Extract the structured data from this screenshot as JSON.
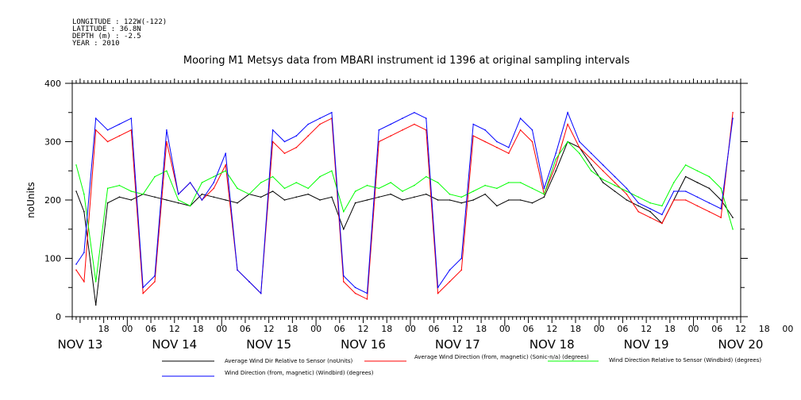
{
  "metadata": {
    "longitude": "LONGITUDE : 122W(-122)",
    "latitude": "LATITUDE : 36.8N",
    "depth": "DEPTH (m) : -2.5",
    "year": "YEAR : 2010"
  },
  "chart_data": {
    "type": "line",
    "title": "Mooring M1 Metsys data from MBARI instrument id 1396 at original sampling intervals",
    "ylabel": "noUnits",
    "xlabel": "",
    "ylim": [
      0,
      400
    ],
    "y_ticks": [
      0,
      100,
      200,
      300,
      400
    ],
    "x_unit": "hours since NOV 13 00:00, 2010",
    "xlim": [
      10,
      180
    ],
    "x_hour_ticks": [
      "18",
      "00",
      "06",
      "12",
      "18",
      "00",
      "06",
      "12",
      "18",
      "00",
      "06",
      "12",
      "18",
      "00",
      "06",
      "12",
      "18",
      "00",
      "06",
      "12",
      "18",
      "00",
      "06",
      "12",
      "18",
      "00",
      "06",
      "12",
      "18",
      "00",
      "06",
      "12"
    ],
    "x_day_labels": [
      "NOV 13",
      "NOV 14",
      "NOV 15",
      "NOV 16",
      "NOV 17",
      "NOV 18",
      "NOV 19",
      "NOV 20"
    ],
    "grid": false,
    "legend_position": "bottom",
    "series": [
      {
        "name": "Average Wind Dir Relative to Sensor (noUnits)",
        "color": "#000000",
        "x": [
          11,
          13,
          16,
          19,
          22,
          25,
          28,
          31,
          34,
          37,
          40,
          43,
          46,
          49,
          52,
          55,
          58,
          61,
          64,
          67,
          70,
          73,
          76,
          79,
          82,
          85,
          88,
          91,
          94,
          97,
          100,
          103,
          106,
          109,
          112,
          115,
          118,
          121,
          124,
          127,
          130,
          133,
          136,
          139,
          142,
          145,
          148,
          151,
          154,
          157,
          160,
          163,
          166,
          169,
          172,
          175,
          178
        ],
        "values": [
          215,
          180,
          20,
          195,
          205,
          200,
          210,
          205,
          200,
          195,
          190,
          210,
          205,
          200,
          195,
          210,
          205,
          215,
          200,
          205,
          210,
          200,
          205,
          150,
          195,
          200,
          205,
          210,
          200,
          205,
          210,
          200,
          200,
          195,
          200,
          210,
          190,
          200,
          200,
          195,
          205,
          250,
          300,
          290,
          260,
          230,
          215,
          200,
          190,
          180,
          160,
          200,
          240,
          230,
          220,
          200,
          170
        ]
      },
      {
        "name": "Average Wind Direction (from, magnetic) (Sonic-n/a) (degrees)",
        "color": "#ff0000",
        "x": [
          11,
          13,
          16,
          19,
          22,
          25,
          28,
          31,
          34,
          37,
          40,
          43,
          46,
          49,
          52,
          55,
          58,
          61,
          64,
          67,
          70,
          73,
          76,
          79,
          82,
          85,
          88,
          91,
          94,
          97,
          100,
          103,
          106,
          109,
          112,
          115,
          118,
          121,
          124,
          127,
          130,
          133,
          136,
          139,
          142,
          145,
          148,
          151,
          154,
          157,
          160,
          163,
          166,
          169,
          172,
          175,
          178
        ],
        "values": [
          80,
          60,
          320,
          300,
          310,
          320,
          40,
          60,
          300,
          210,
          230,
          200,
          220,
          260,
          80,
          60,
          40,
          300,
          280,
          290,
          310,
          330,
          340,
          60,
          40,
          30,
          300,
          310,
          320,
          330,
          320,
          40,
          60,
          80,
          310,
          300,
          290,
          280,
          320,
          300,
          210,
          260,
          330,
          290,
          270,
          250,
          230,
          210,
          180,
          170,
          160,
          200,
          200,
          190,
          180,
          170,
          350
        ]
      },
      {
        "name": "Wind Direction Relative to Sensor (Windbird) (degrees)",
        "color": "#00ff00",
        "x": [
          11,
          13,
          16,
          19,
          22,
          25,
          28,
          31,
          34,
          37,
          40,
          43,
          46,
          49,
          52,
          55,
          58,
          61,
          64,
          67,
          70,
          73,
          76,
          79,
          82,
          85,
          88,
          91,
          94,
          97,
          100,
          103,
          106,
          109,
          112,
          115,
          118,
          121,
          124,
          127,
          130,
          133,
          136,
          139,
          142,
          145,
          148,
          151,
          154,
          157,
          160,
          163,
          166,
          169,
          172,
          175,
          178
        ],
        "values": [
          260,
          210,
          60,
          220,
          225,
          215,
          210,
          240,
          250,
          200,
          190,
          230,
          240,
          250,
          220,
          210,
          230,
          240,
          220,
          230,
          220,
          240,
          250,
          180,
          215,
          225,
          220,
          230,
          215,
          225,
          240,
          230,
          210,
          205,
          215,
          225,
          220,
          230,
          230,
          220,
          210,
          270,
          300,
          280,
          250,
          235,
          225,
          215,
          205,
          195,
          190,
          230,
          260,
          250,
          240,
          220,
          150
        ]
      },
      {
        "name": "Wind Direction (from, magnetic) (Windbird) (degrees)",
        "color": "#0000ff",
        "x": [
          11,
          13,
          16,
          19,
          22,
          25,
          28,
          31,
          34,
          37,
          40,
          43,
          46,
          49,
          52,
          55,
          58,
          61,
          64,
          67,
          70,
          73,
          76,
          79,
          82,
          85,
          88,
          91,
          94,
          97,
          100,
          103,
          106,
          109,
          112,
          115,
          118,
          121,
          124,
          127,
          130,
          133,
          136,
          139,
          142,
          145,
          148,
          151,
          154,
          157,
          160,
          163,
          166,
          169,
          172,
          175,
          178
        ],
        "values": [
          90,
          110,
          340,
          320,
          330,
          340,
          50,
          70,
          320,
          210,
          230,
          200,
          230,
          280,
          80,
          60,
          40,
          320,
          300,
          310,
          330,
          340,
          350,
          70,
          50,
          40,
          320,
          330,
          340,
          350,
          340,
          50,
          80,
          100,
          330,
          320,
          300,
          290,
          340,
          320,
          220,
          280,
          350,
          300,
          280,
          260,
          240,
          220,
          195,
          185,
          175,
          215,
          215,
          205,
          195,
          185,
          340
        ]
      }
    ]
  }
}
